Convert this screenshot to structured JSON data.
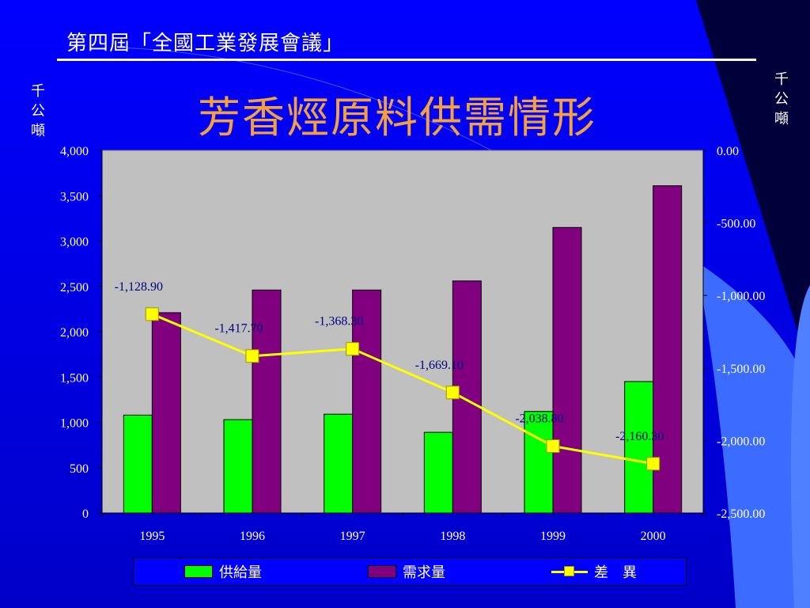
{
  "header": {
    "meeting_title": "第四屆「全國工業發展會議」"
  },
  "unit_left": "千公噸",
  "unit_right": "千公噸",
  "colors": {
    "background_top": "#0000ff",
    "background_bottom": "#0000c8",
    "title": "#f2a040",
    "plot_area": "#c0c0c0",
    "supply": "#00ff00",
    "demand": "#800080",
    "difference": "#ffff00"
  },
  "legend": {
    "supply_label": "供給量",
    "demand_label": "需求量",
    "difference_label": "差　異"
  },
  "chart_data": {
    "type": "bar",
    "title": "芳香烴原料供需情形",
    "categories": [
      "1995",
      "1996",
      "1997",
      "1998",
      "1999",
      "2000"
    ],
    "series": [
      {
        "name": "供給量",
        "type": "bar",
        "axis": "left",
        "values": [
          1080,
          1030,
          1090,
          890,
          1120,
          1450
        ]
      },
      {
        "name": "需求量",
        "type": "bar",
        "axis": "left",
        "values": [
          2210,
          2460,
          2460,
          2560,
          3150,
          3610
        ]
      },
      {
        "name": "差　異",
        "type": "line",
        "axis": "right",
        "values": [
          -1128.9,
          -1417.7,
          -1368.3,
          -1669.1,
          -2038.8,
          -2160.3
        ],
        "data_labels": [
          "-1,128.90",
          "-1,417.70",
          "-1,368.30",
          "-1,669.10",
          "-2,038.80",
          "-2,160.30"
        ]
      }
    ],
    "y_left": {
      "ylim": [
        0,
        4000
      ],
      "ticks": [
        "0",
        "500",
        "1,000",
        "1,500",
        "2,000",
        "2,500",
        "3,000",
        "3,500",
        "4,000"
      ]
    },
    "y_right": {
      "ylim": [
        -2500,
        0
      ],
      "ticks": [
        "-2,500.00",
        "-2,000.00",
        "-1,500.00",
        "-1,000.00",
        "-500.00",
        "0.00"
      ]
    },
    "grid": false,
    "legend_position": "bottom"
  }
}
